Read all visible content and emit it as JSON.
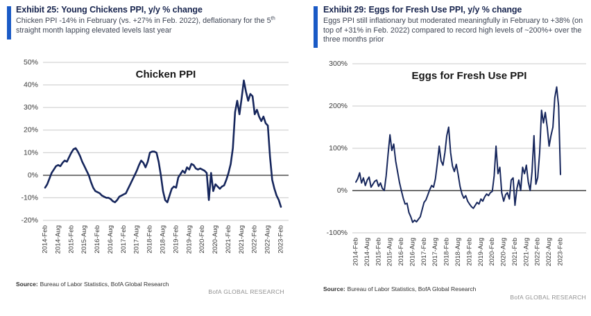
{
  "panels": [
    {
      "exhibit_title": "Exhibit 25: Young Chickens PPI, y/y % change",
      "subtitle_parts": {
        "before": "Chicken PPI -14% in February (vs. +27% in Feb. 2022), deflationary for the 5",
        "sup": "th",
        "after": " straight month lapping elevated levels last year"
      },
      "source_label": "Source:",
      "source_text": "Bureau of Labor Statistics, BofA Global Research",
      "watermark": "BofA GLOBAL RESEARCH"
    },
    {
      "exhibit_title": "Exhibit 29: Eggs for Fresh Use PPI, y/y % change",
      "subtitle": "Eggs PPI still inflationary but moderated meaningfully in February to +38% (on top of +31% in Feb. 2022) compared to record high levels of ~200%+ over the three months prior",
      "source_label": "Source:",
      "source_text": "Bureau of Labor Statistics, BofA Global Research",
      "watermark": "BofA GLOBAL RESEARCH"
    }
  ],
  "chart_data": [
    {
      "type": "line",
      "title": "Chicken PPI",
      "ylabel": "y/y % change",
      "ylim": [
        -20,
        50
      ],
      "grid": "horizontal",
      "legend": "none",
      "zero_line": true,
      "y_tick_labels": [
        "50%",
        "40%",
        "30%",
        "20%",
        "10%",
        "0%",
        "-10%",
        "-20%"
      ],
      "x_tick_labels": [
        "2014-Feb",
        "2014-Aug",
        "2015-Feb",
        "2015-Aug",
        "2016-Feb",
        "2016-Aug",
        "2017-Feb",
        "2017-Aug",
        "2018-Feb",
        "2018-Aug",
        "2019-Feb",
        "2019-Aug",
        "2020-Feb",
        "2020-Aug",
        "2021-Feb",
        "2021-Aug",
        "2022-Feb",
        "2022-Aug",
        "2023-Feb"
      ],
      "x_label_every": 6,
      "x_frequency": "monthly",
      "x_range": "2014-Feb to 2023-Feb",
      "series": [
        {
          "name": "Chicken PPI y/y %",
          "values": [
            -5.5,
            -4,
            -1.5,
            1,
            2.5,
            4,
            4.5,
            4,
            5.5,
            6.5,
            6,
            8,
            10,
            11.5,
            12,
            10.5,
            8.5,
            6,
            4,
            2,
            0,
            -3,
            -5.5,
            -7,
            -7.5,
            -8,
            -9,
            -9.5,
            -10,
            -10,
            -10.5,
            -11.5,
            -12,
            -11,
            -9.5,
            -9,
            -8.5,
            -8,
            -6,
            -4,
            -2,
            0,
            2,
            4.5,
            6.5,
            5.5,
            3.5,
            6,
            10,
            10.5,
            10.5,
            10,
            6,
            0,
            -7,
            -11,
            -12,
            -9,
            -6,
            -5,
            -5.5,
            -1,
            0.5,
            2,
            1,
            3.5,
            2.5,
            5,
            4.5,
            3,
            2.5,
            3,
            2.5,
            2,
            1,
            -11,
            1,
            -7,
            -4,
            -5,
            -6,
            -5,
            -4.5,
            -2,
            1,
            5,
            12,
            28,
            33,
            27,
            34,
            42,
            37,
            33,
            36,
            35,
            27,
            29,
            26,
            24,
            26,
            23,
            22,
            8,
            -2,
            -6,
            -9,
            -11,
            -14
          ]
        }
      ]
    },
    {
      "type": "line",
      "title": "Eggs for Fresh Use PPI",
      "ylabel": "y/y % change",
      "ylim": [
        -100,
        300
      ],
      "grid": "horizontal",
      "legend": "none",
      "zero_line": true,
      "y_tick_labels": [
        "300%",
        "200%",
        "100%",
        "0%",
        "-100%"
      ],
      "x_tick_labels": [
        "2014-Feb",
        "2014-Aug",
        "2015-Feb",
        "2015-Aug",
        "2016-Feb",
        "2016-Aug",
        "2017-Feb",
        "2017-Aug",
        "2018-Feb",
        "2018-Aug",
        "2019-Feb",
        "2019-Aug",
        "2020-Feb",
        "2020-Aug",
        "2021-Feb",
        "2021-Aug",
        "2022-Feb",
        "2022-Aug",
        "2023-Feb"
      ],
      "x_label_every": 6,
      "x_frequency": "monthly",
      "x_range": "2014-Feb to 2023-Feb",
      "series": [
        {
          "name": "Eggs for Fresh Use PPI y/y %",
          "values": [
            20,
            28,
            42,
            18,
            30,
            12,
            25,
            32,
            8,
            15,
            22,
            25,
            10,
            18,
            5,
            0,
            35,
            85,
            132,
            95,
            110,
            70,
            45,
            20,
            0,
            -18,
            -32,
            -30,
            -52,
            -62,
            -75,
            -70,
            -74,
            -68,
            -62,
            -45,
            -28,
            -22,
            -10,
            2,
            12,
            8,
            28,
            65,
            105,
            70,
            60,
            90,
            130,
            150,
            90,
            58,
            45,
            62,
            38,
            10,
            -8,
            -18,
            -12,
            -25,
            -32,
            -38,
            -42,
            -35,
            -28,
            -32,
            -20,
            -25,
            -15,
            -8,
            -12,
            -5,
            -2,
            35,
            105,
            40,
            55,
            -5,
            -25,
            -10,
            -5,
            -20,
            25,
            30,
            -35,
            5,
            25,
            0,
            55,
            40,
            60,
            20,
            0,
            45,
            130,
            15,
            31,
            90,
            190,
            160,
            185,
            150,
            105,
            130,
            150,
            220,
            245,
            200,
            38
          ]
        }
      ]
    }
  ],
  "colors": {
    "accent_bar_blue": "#1a5ac6",
    "exhibit_title_navy": "#17244e",
    "subtitle_gray": "#3e4554",
    "series_line_navy": "#16265c",
    "gridline_gray": "#c9c9c9",
    "zero_line_dark": "#3f3f3f",
    "axis_label_gray": "#3a3a3a",
    "chart_title_black": "#151515",
    "source_text_dark": "#2f2f2f",
    "watermark_gray": "#909090"
  }
}
